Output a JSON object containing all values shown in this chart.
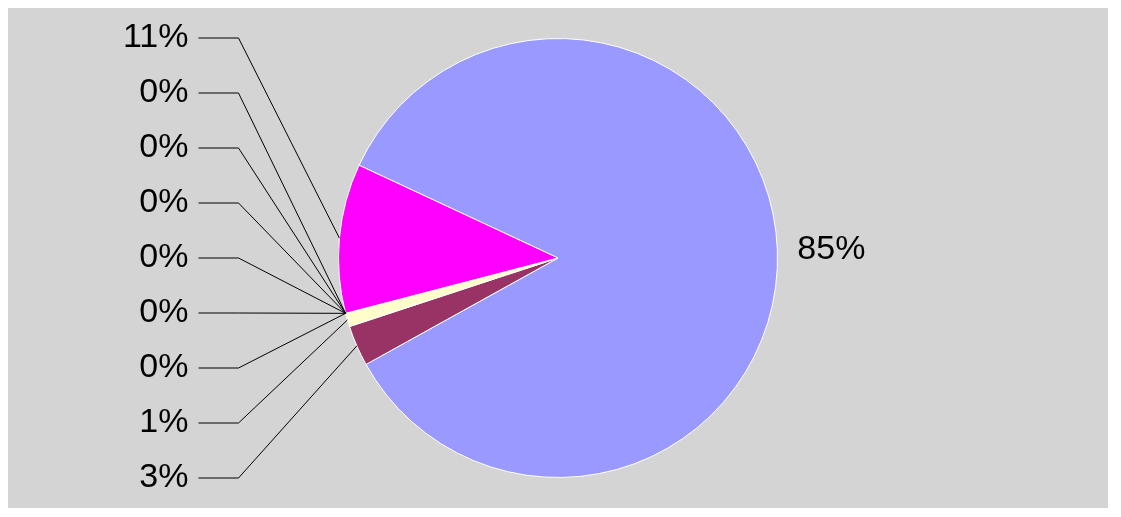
{
  "chart_data": {
    "type": "pie",
    "categories": [
      null,
      null,
      null,
      null,
      null,
      null,
      null,
      null,
      null,
      null
    ],
    "values": [
      85,
      3,
      1,
      0,
      0,
      0,
      0,
      0,
      0,
      11
    ],
    "colors": [
      "#9999ff",
      "#993366",
      "#ffffcc",
      "#ccffff",
      "#660066",
      "#ff8080",
      "#0066cc",
      "#ccccff",
      "#000080",
      "#ff00ff"
    ],
    "value_labels": [
      "85%",
      "3%",
      "1%",
      "0%",
      "0%",
      "0%",
      "0%",
      "0%",
      "0%",
      "11%"
    ],
    "legend": false
  }
}
